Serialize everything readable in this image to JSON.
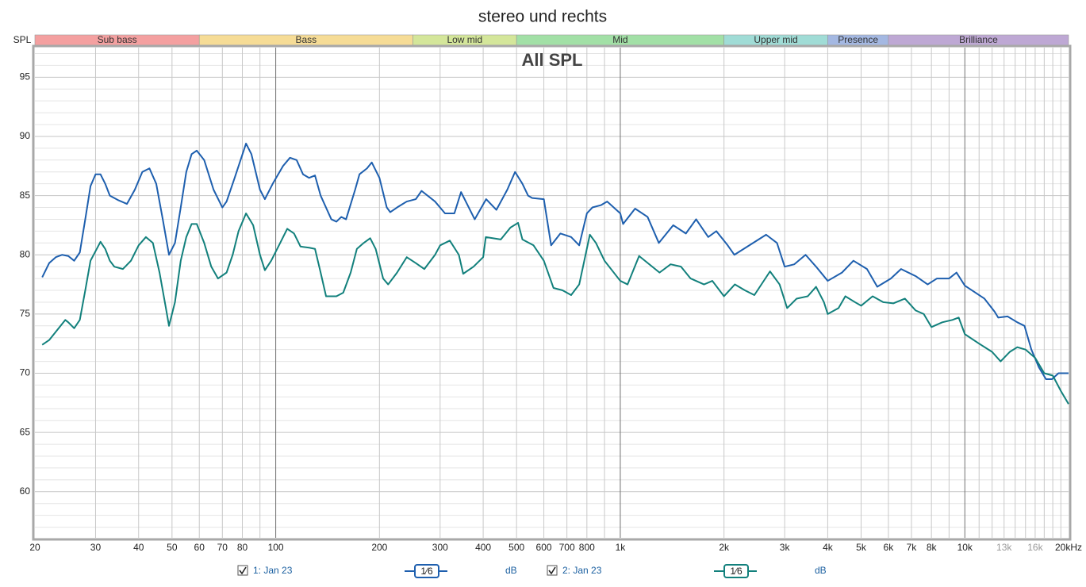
{
  "chart_data": {
    "type": "line",
    "title": "stereo und rechts",
    "inner_title": "All SPL",
    "y_label": "SPL",
    "log_x": true,
    "grid": true,
    "xlim": [
      20,
      20000
    ],
    "ylim": [
      56.1,
      97.5
    ],
    "yticks": [
      60,
      65,
      70,
      75,
      80,
      85,
      90,
      95
    ],
    "yminorticks": [
      57,
      58,
      59,
      61,
      62,
      63,
      64,
      66,
      67,
      68,
      69,
      71,
      72,
      73,
      74,
      76,
      77,
      78,
      79,
      81,
      82,
      83,
      84,
      86,
      87,
      88,
      89,
      91,
      92,
      93,
      94,
      96,
      97
    ],
    "xticks": [
      20,
      30,
      40,
      50,
      60,
      70,
      80,
      100,
      200,
      300,
      400,
      500,
      600,
      700,
      800,
      {
        "value": 1000,
        "label": "1k"
      },
      {
        "value": 2000,
        "label": "2k"
      },
      {
        "value": 3000,
        "label": "3k"
      },
      {
        "value": 4000,
        "label": "4k"
      },
      {
        "value": 5000,
        "label": "5k"
      },
      {
        "value": 6000,
        "label": "6k"
      },
      {
        "value": 7000,
        "label": "7k"
      },
      {
        "value": 8000,
        "label": "8k"
      },
      {
        "value": 10000,
        "label": "10k"
      },
      {
        "value": 13000,
        "label": "13k"
      },
      {
        "value": 16000,
        "label": "16k"
      },
      {
        "value": 20000,
        "label": "20kHz"
      }
    ],
    "xgrid": [
      30,
      40,
      50,
      60,
      70,
      80,
      90,
      100,
      200,
      300,
      400,
      500,
      600,
      700,
      800,
      900,
      1000,
      2000,
      3000,
      4000,
      5000,
      6000,
      7000,
      8000,
      9000,
      10000,
      11000,
      12000,
      13000,
      14000,
      15000,
      16000,
      17000,
      18000,
      19000
    ],
    "bands": [
      {
        "name": "Sub bass",
        "from": 20,
        "to": 60,
        "color": "#f4a0a0"
      },
      {
        "name": "Bass",
        "from": 60,
        "to": 250,
        "color": "#f6dc96"
      },
      {
        "name": "Low mid",
        "from": 250,
        "to": 500,
        "color": "#d4e69a"
      },
      {
        "name": "Mid",
        "from": 500,
        "to": 2000,
        "color": "#a2e0a6"
      },
      {
        "name": "Upper mid",
        "from": 2000,
        "to": 4000,
        "color": "#a0dcd6"
      },
      {
        "name": "Presence",
        "from": 4000,
        "to": 6000,
        "color": "#a4b8e2"
      },
      {
        "name": "Brilliance",
        "from": 6000,
        "to": 20000,
        "color": "#bea8d4"
      }
    ],
    "series": [
      {
        "name": "1: Jan 23",
        "color": "#1e5fae",
        "smoothing": "1⁄6",
        "unit": "dB",
        "x": [
          21,
          22,
          23,
          24,
          25,
          26,
          27,
          28,
          29,
          30,
          31,
          32,
          33,
          35,
          37,
          39,
          41,
          43,
          45,
          47,
          49,
          51,
          53,
          55,
          57,
          59,
          62,
          66,
          70,
          72,
          76,
          82,
          85,
          90,
          93,
          98,
          105,
          110,
          115,
          120,
          125,
          130,
          135,
          145,
          150,
          155,
          160,
          170,
          175,
          184,
          190,
          200,
          210,
          215,
          225,
          240,
          255,
          265,
          290,
          310,
          330,
          345,
          378,
          408,
          437,
          470,
          495,
          520,
          540,
          555,
          600,
          630,
          670,
          720,
          760,
          800,
          830,
          880,
          916,
          1000,
          1019,
          1104,
          1200,
          1294,
          1425,
          1550,
          1660,
          1800,
          1900,
          2050,
          2143,
          2650,
          2850,
          3000,
          3200,
          3450,
          3700,
          4000,
          4400,
          4750,
          5200,
          5570,
          6100,
          6530,
          7200,
          7800,
          8300,
          9000,
          9460,
          10000,
          11400,
          12200,
          12500,
          13300,
          14200,
          14900,
          15600,
          16400,
          17200,
          17900,
          18700,
          20000
        ],
        "values": [
          78.1,
          79.3,
          79.8,
          80.0,
          79.9,
          79.5,
          80.2,
          83.0,
          85.8,
          86.8,
          86.8,
          86.0,
          85.0,
          84.6,
          84.3,
          85.5,
          87.0,
          87.3,
          86.0,
          83.0,
          80.0,
          81.0,
          84.0,
          87.0,
          88.5,
          88.8,
          88.0,
          85.5,
          84.0,
          84.5,
          86.5,
          89.4,
          88.5,
          85.5,
          84.7,
          86.0,
          87.5,
          88.2,
          88.0,
          86.8,
          86.5,
          86.7,
          85.0,
          83.0,
          82.8,
          83.2,
          83.0,
          85.5,
          86.8,
          87.3,
          87.8,
          86.5,
          84.0,
          83.6,
          84.0,
          84.5,
          84.7,
          85.4,
          84.5,
          83.5,
          83.5,
          85.3,
          83.0,
          84.7,
          83.8,
          85.5,
          87.0,
          86.0,
          85.0,
          84.8,
          84.7,
          80.8,
          81.8,
          81.5,
          80.8,
          83.5,
          84.0,
          84.2,
          84.5,
          83.5,
          82.6,
          83.9,
          83.2,
          81.0,
          82.5,
          81.8,
          83.0,
          81.5,
          82.0,
          80.8,
          80.0,
          81.7,
          81.0,
          79.0,
          79.2,
          80.0,
          79.0,
          77.8,
          78.5,
          79.5,
          78.8,
          77.3,
          78.0,
          78.8,
          78.2,
          77.5,
          78.0,
          78.0,
          78.5,
          77.4,
          76.3,
          75.2,
          74.7,
          74.8,
          74.3,
          74.0,
          72.0,
          70.5,
          69.5,
          69.5,
          70.0,
          70.0
        ]
      },
      {
        "name": "2: Jan 23",
        "color": "#12807c",
        "smoothing": "1⁄6",
        "unit": "dB",
        "x": [
          21,
          22,
          23,
          24.5,
          25,
          26,
          27,
          28,
          29,
          31,
          32,
          33,
          34,
          36,
          38,
          40,
          42,
          44,
          46,
          48,
          49,
          51,
          53,
          55,
          57,
          59,
          62,
          65,
          68,
          72,
          75,
          78,
          82,
          86,
          90,
          93,
          97,
          103,
          108,
          113,
          118,
          125,
          130,
          135,
          140,
          150,
          157,
          165,
          172,
          180,
          188,
          195,
          205,
          212,
          225,
          240,
          255,
          270,
          290,
          300,
          320,
          340,
          350,
          375,
          400,
          407,
          450,
          480,
          505,
          520,
          560,
          600,
          640,
          680,
          720,
          760,
          816,
          850,
          900,
          1000,
          1050,
          1134,
          1300,
          1400,
          1500,
          1600,
          1750,
          1850,
          2000,
          2150,
          2300,
          2450,
          2720,
          2900,
          3050,
          3250,
          3500,
          3700,
          3900,
          4000,
          4300,
          4500,
          4800,
          5000,
          5400,
          5800,
          6200,
          6700,
          7200,
          7600,
          8000,
          8600,
          9200,
          9600,
          10000,
          11000,
          12000,
          12700,
          13500,
          14200,
          15000,
          16000,
          17000,
          18000,
          19000,
          20000
        ],
        "values": [
          72.4,
          72.8,
          73.5,
          74.5,
          74.3,
          73.8,
          74.5,
          77.0,
          79.5,
          81.1,
          80.5,
          79.5,
          79.0,
          78.8,
          79.5,
          80.8,
          81.5,
          81.0,
          78.5,
          75.5,
          74.0,
          76.0,
          79.5,
          81.5,
          82.6,
          82.6,
          81.0,
          79.0,
          78.0,
          78.5,
          80.0,
          82.0,
          83.5,
          82.5,
          80.0,
          78.7,
          79.5,
          81.0,
          82.2,
          81.8,
          80.7,
          80.6,
          80.5,
          78.5,
          76.5,
          76.5,
          76.8,
          78.5,
          80.5,
          81.0,
          81.4,
          80.5,
          78.0,
          77.5,
          78.5,
          79.8,
          79.3,
          78.8,
          80.0,
          80.8,
          81.2,
          80.0,
          78.4,
          79.0,
          79.8,
          81.5,
          81.3,
          82.3,
          82.7,
          81.3,
          80.8,
          79.5,
          77.2,
          77.0,
          76.6,
          77.5,
          81.7,
          81.0,
          79.5,
          77.8,
          77.5,
          79.9,
          78.5,
          79.2,
          79.0,
          78.0,
          77.5,
          77.8,
          76.5,
          77.5,
          77.0,
          76.6,
          78.6,
          77.5,
          75.5,
          76.3,
          76.5,
          77.3,
          76.0,
          75.0,
          75.5,
          76.5,
          76.0,
          75.7,
          76.5,
          76.0,
          75.9,
          76.3,
          75.3,
          75.0,
          73.9,
          74.3,
          74.5,
          74.7,
          73.3,
          72.5,
          71.8,
          71.0,
          71.8,
          72.2,
          72.0,
          71.3,
          70.0,
          69.8,
          68.5,
          67.4
        ]
      }
    ]
  }
}
